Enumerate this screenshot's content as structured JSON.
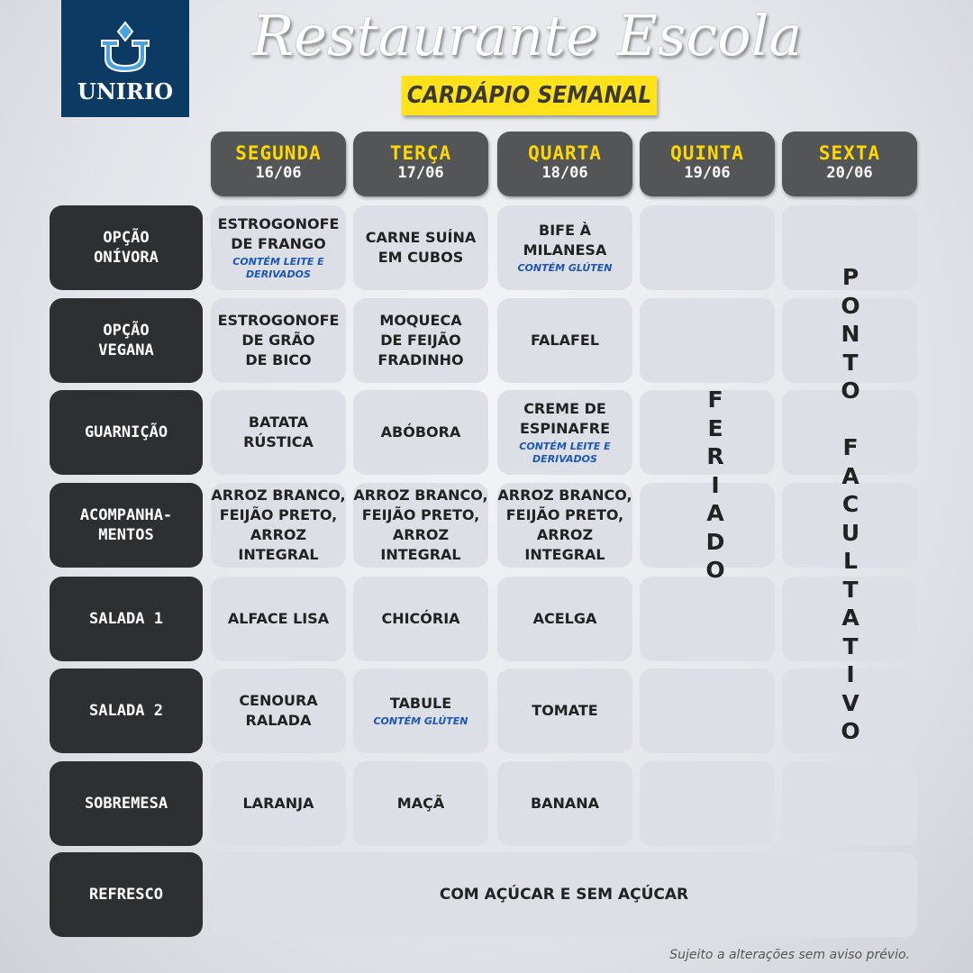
{
  "logo": {
    "text": "UNIRIO"
  },
  "title": "Restaurante Escola",
  "subtitle": "CARDÁPIO SEMANAL",
  "days": [
    {
      "name": "SEGUNDA",
      "date": "16/06"
    },
    {
      "name": "TERÇA",
      "date": "17/06"
    },
    {
      "name": "QUARTA",
      "date": "18/06"
    },
    {
      "name": "QUINTA",
      "date": "19/06"
    },
    {
      "name": "SEXTA",
      "date": "20/06"
    }
  ],
  "rows": [
    {
      "label": "OPÇÃO\nONÍVORA",
      "cells": [
        {
          "dish": "ESTROGONOFE\nDE FRANGO",
          "note": "CONTÉM LEITE E\nDERIVADOS"
        },
        {
          "dish": "CARNE SUÍNA\nEM CUBOS"
        },
        {
          "dish": "BIFE À\nMILANESA",
          "note": "CONTÉM GLÚTEN"
        }
      ]
    },
    {
      "label": "OPÇÃO\nVEGANA",
      "cells": [
        {
          "dish": "ESTROGONOFE\nDE GRÃO\nDE BICO"
        },
        {
          "dish": "MOQUECA\nDE FEIJÃO\nFRADINHO"
        },
        {
          "dish": "FALAFEL"
        }
      ]
    },
    {
      "label": "GUARNIÇÃO",
      "cells": [
        {
          "dish": "BATATA\nRÚSTICA"
        },
        {
          "dish": "ABÓBORA"
        },
        {
          "dish": "CREME DE\nESPINAFRE",
          "note": "CONTÉM LEITE E\nDERIVADOS"
        }
      ]
    },
    {
      "label": "ACOMPANHA-\nMENTOS",
      "cells": [
        {
          "dish": "ARROZ BRANCO,\nFEIJÃO PRETO,\nARROZ INTEGRAL"
        },
        {
          "dish": "ARROZ BRANCO,\nFEIJÃO PRETO,\nARROZ INTEGRAL"
        },
        {
          "dish": "ARROZ BRANCO,\nFEIJÃO PRETO,\nARROZ INTEGRAL"
        }
      ]
    },
    {
      "label": "SALADA 1",
      "cells": [
        {
          "dish": "ALFACE LISA"
        },
        {
          "dish": "CHICÓRIA"
        },
        {
          "dish": "ACELGA"
        }
      ]
    },
    {
      "label": "SALADA 2",
      "cells": [
        {
          "dish": "CENOURA\nRALADA"
        },
        {
          "dish": "TABULE",
          "note": "CONTÉM GLÚTEN"
        },
        {
          "dish": "TOMATE"
        }
      ]
    },
    {
      "label": "SOBREMESA",
      "cells": [
        {
          "dish": "LARANJA"
        },
        {
          "dish": "MAÇÃ"
        },
        {
          "dish": "BANANA"
        }
      ]
    }
  ],
  "refresco": {
    "label": "REFRESCO",
    "value": "COM AÇÚCAR E SEM AÇÚCAR"
  },
  "thursday_note": "FERIADO",
  "friday_note": "PONTO FACULTATIVO",
  "footer": "Sujeito a alterações sem aviso prévio.",
  "colors": {
    "header_bg": "#545557",
    "day_text": "#ffd800",
    "label_bg": "#2e2f31",
    "cell_bg": "#dcdfe5",
    "note": "#1b56b8",
    "subtitle_bg": "#ffe21a",
    "logo_bg": "#0b3a63"
  }
}
